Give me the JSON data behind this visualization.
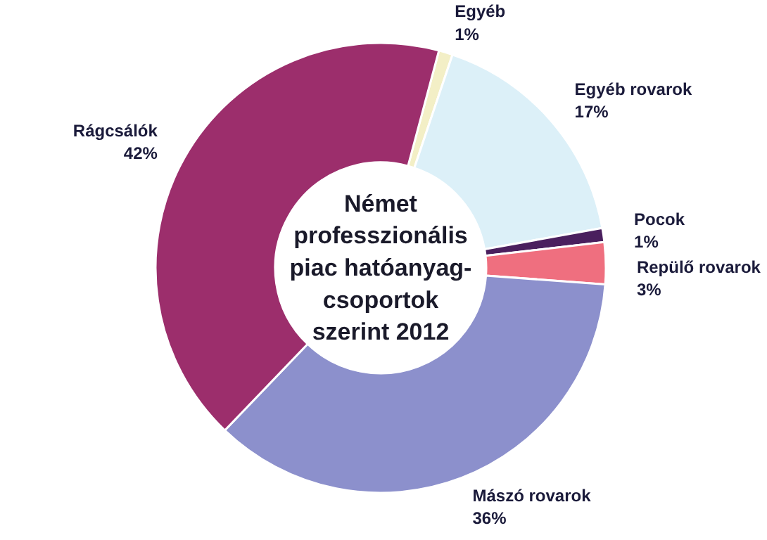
{
  "chart_data": {
    "type": "donut",
    "title": "Német\nprofesszionális\npiac hatóanyag-\ncsoportok\nszerint 2012",
    "categories": [
      "Egyéb",
      "Egyéb rovarok",
      "Pocok",
      "Repülő rovarok",
      "Mászó rovarok",
      "Rágcsálók"
    ],
    "values": [
      1,
      17,
      1,
      3,
      36,
      42
    ],
    "value_labels": [
      "1%",
      "17%",
      "1%",
      "3%",
      "36%",
      "42%"
    ],
    "colors": [
      "#f3efc6",
      "#dcf0f8",
      "#4a1f5e",
      "#ef6f7f",
      "#8c90cc",
      "#9c2e6c"
    ]
  }
}
